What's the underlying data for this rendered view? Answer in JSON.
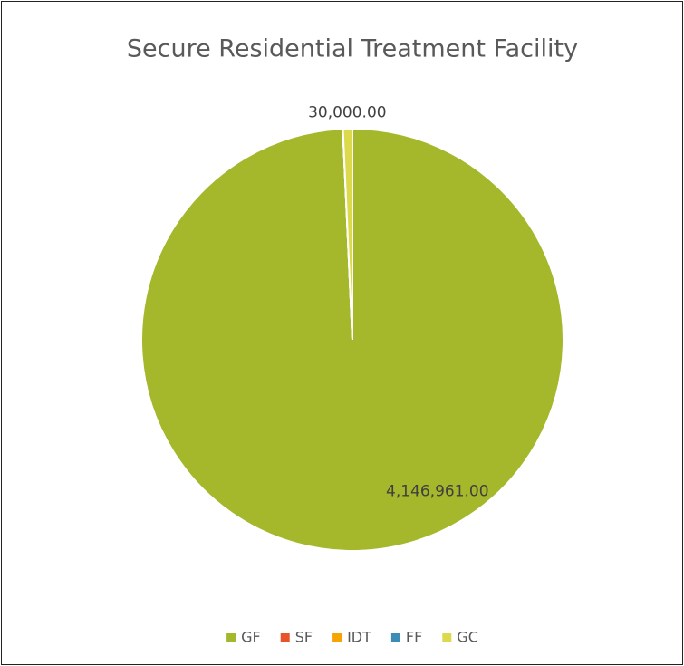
{
  "chart_data": {
    "type": "pie",
    "title": "Secure Residential Treatment Facility",
    "categories": [
      "GF",
      "SF",
      "IDT",
      "FF",
      "GC"
    ],
    "values": [
      4146961,
      0,
      0,
      0,
      30000
    ],
    "value_labels": [
      "4,146,961.00",
      null,
      null,
      null,
      "30,000.00"
    ],
    "colors": [
      "#a5b72b",
      "#e8542a",
      "#f6a400",
      "#3b8db6",
      "#dcd94c"
    ],
    "legend": "bottom"
  }
}
